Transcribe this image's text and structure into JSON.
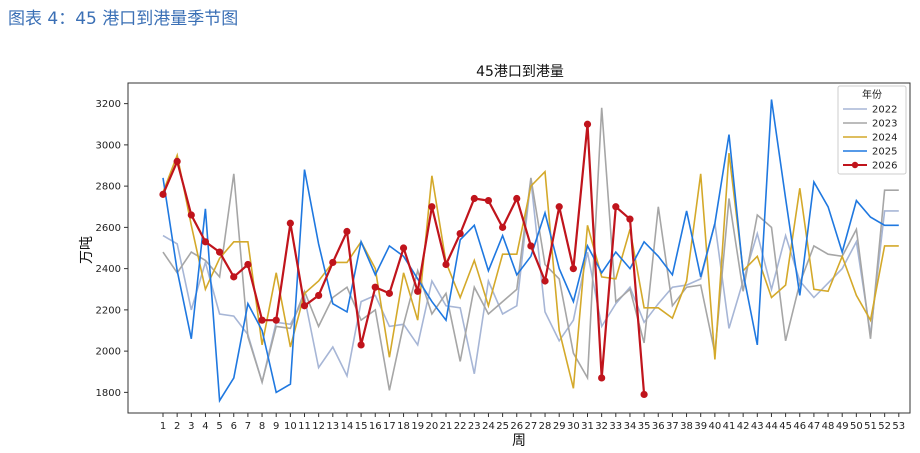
{
  "caption": "图表 4：45 港口到港量季节图",
  "chart_data": {
    "type": "line",
    "title": "45港口到港量",
    "xlabel": "周",
    "ylabel": "万吨",
    "ylim": [
      1700,
      3300
    ],
    "yticks": [
      1800,
      2000,
      2200,
      2400,
      2600,
      2800,
      3000,
      3200
    ],
    "x": [
      1,
      2,
      3,
      4,
      5,
      6,
      7,
      8,
      9,
      10,
      11,
      12,
      13,
      14,
      15,
      16,
      17,
      18,
      19,
      20,
      21,
      22,
      23,
      24,
      25,
      26,
      27,
      28,
      29,
      30,
      31,
      32,
      33,
      34,
      35,
      36,
      37,
      38,
      39,
      40,
      41,
      42,
      43,
      44,
      45,
      46,
      47,
      48,
      49,
      50,
      51,
      52,
      53
    ],
    "legend_title": "年份",
    "legend_position": "top-right",
    "grid": false,
    "series": [
      {
        "name": "2022",
        "color": "#a7b6d6",
        "marker": false,
        "values": [
          2560,
          2520,
          2200,
          2430,
          2180,
          2170,
          2080,
          1850,
          2140,
          2130,
          2260,
          1920,
          2020,
          1880,
          2240,
          2270,
          2120,
          2130,
          2030,
          2340,
          2220,
          2210,
          1890,
          2340,
          2180,
          2220,
          2830,
          2190,
          2050,
          2150,
          2480,
          2120,
          2230,
          2310,
          2140,
          2230,
          2310,
          2320,
          2350,
          2620,
          2110,
          2340,
          2570,
          2300,
          2560,
          2340,
          2260,
          2330,
          2400,
          2530,
          2080,
          2680,
          2680
        ]
      },
      {
        "name": "2023",
        "color": "#a6a6a6",
        "marker": false,
        "values": [
          2480,
          2380,
          2480,
          2440,
          2360,
          2860,
          2070,
          1850,
          2120,
          2110,
          2290,
          2120,
          2260,
          2310,
          2150,
          2200,
          1810,
          2130,
          2390,
          2180,
          2280,
          1950,
          2310,
          2180,
          2240,
          2300,
          2840,
          2420,
          2350,
          1990,
          1870,
          3180,
          2240,
          2300,
          2040,
          2700,
          2220,
          2310,
          2320,
          1990,
          2740,
          2290,
          2660,
          2600,
          2050,
          2330,
          2510,
          2470,
          2460,
          2590,
          2060,
          2780,
          2780
        ]
      },
      {
        "name": "2024",
        "color": "#d4a92a",
        "marker": false,
        "values": [
          2770,
          2950,
          2610,
          2300,
          2450,
          2530,
          2530,
          2030,
          2380,
          2020,
          2280,
          2340,
          2430,
          2430,
          2530,
          2400,
          1970,
          2380,
          2150,
          2850,
          2430,
          2260,
          2440,
          2220,
          2470,
          2470,
          2800,
          2870,
          2100,
          1820,
          2610,
          2360,
          2350,
          2590,
          2210,
          2210,
          2160,
          2340,
          2860,
          1960,
          2960,
          2390,
          2460,
          2260,
          2320,
          2790,
          2300,
          2290,
          2460,
          2270,
          2150,
          2510,
          2510
        ]
      },
      {
        "name": "2025",
        "color": "#1f78e0",
        "marker": false,
        "values": [
          2840,
          2390,
          2060,
          2690,
          1760,
          1870,
          2230,
          2100,
          1800,
          1840,
          2880,
          2520,
          2230,
          2190,
          2530,
          2370,
          2510,
          2460,
          2350,
          2240,
          2150,
          2540,
          2610,
          2390,
          2560,
          2370,
          2460,
          2670,
          2400,
          2240,
          2510,
          2380,
          2480,
          2400,
          2530,
          2460,
          2370,
          2680,
          2360,
          2620,
          3050,
          2380,
          2030,
          3220,
          2740,
          2270,
          2820,
          2700,
          2480,
          2730,
          2650,
          2610,
          2610
        ]
      },
      {
        "name": "2026",
        "color": "#c0141c",
        "marker": true,
        "values": [
          2760,
          2920,
          2660,
          2530,
          2480,
          2360,
          2420,
          2150,
          2150,
          2620,
          2220,
          2270,
          2430,
          2580,
          2030,
          2310,
          2280,
          2500,
          2290,
          2700,
          2420,
          2570,
          2740,
          2730,
          2600,
          2740,
          2510,
          2340,
          2700,
          2400,
          3100,
          1870,
          2700,
          2640,
          1790,
          null,
          null,
          null,
          null,
          null,
          null,
          null,
          null,
          null,
          null,
          null,
          null,
          null,
          null,
          null,
          null,
          null,
          null
        ]
      }
    ]
  }
}
